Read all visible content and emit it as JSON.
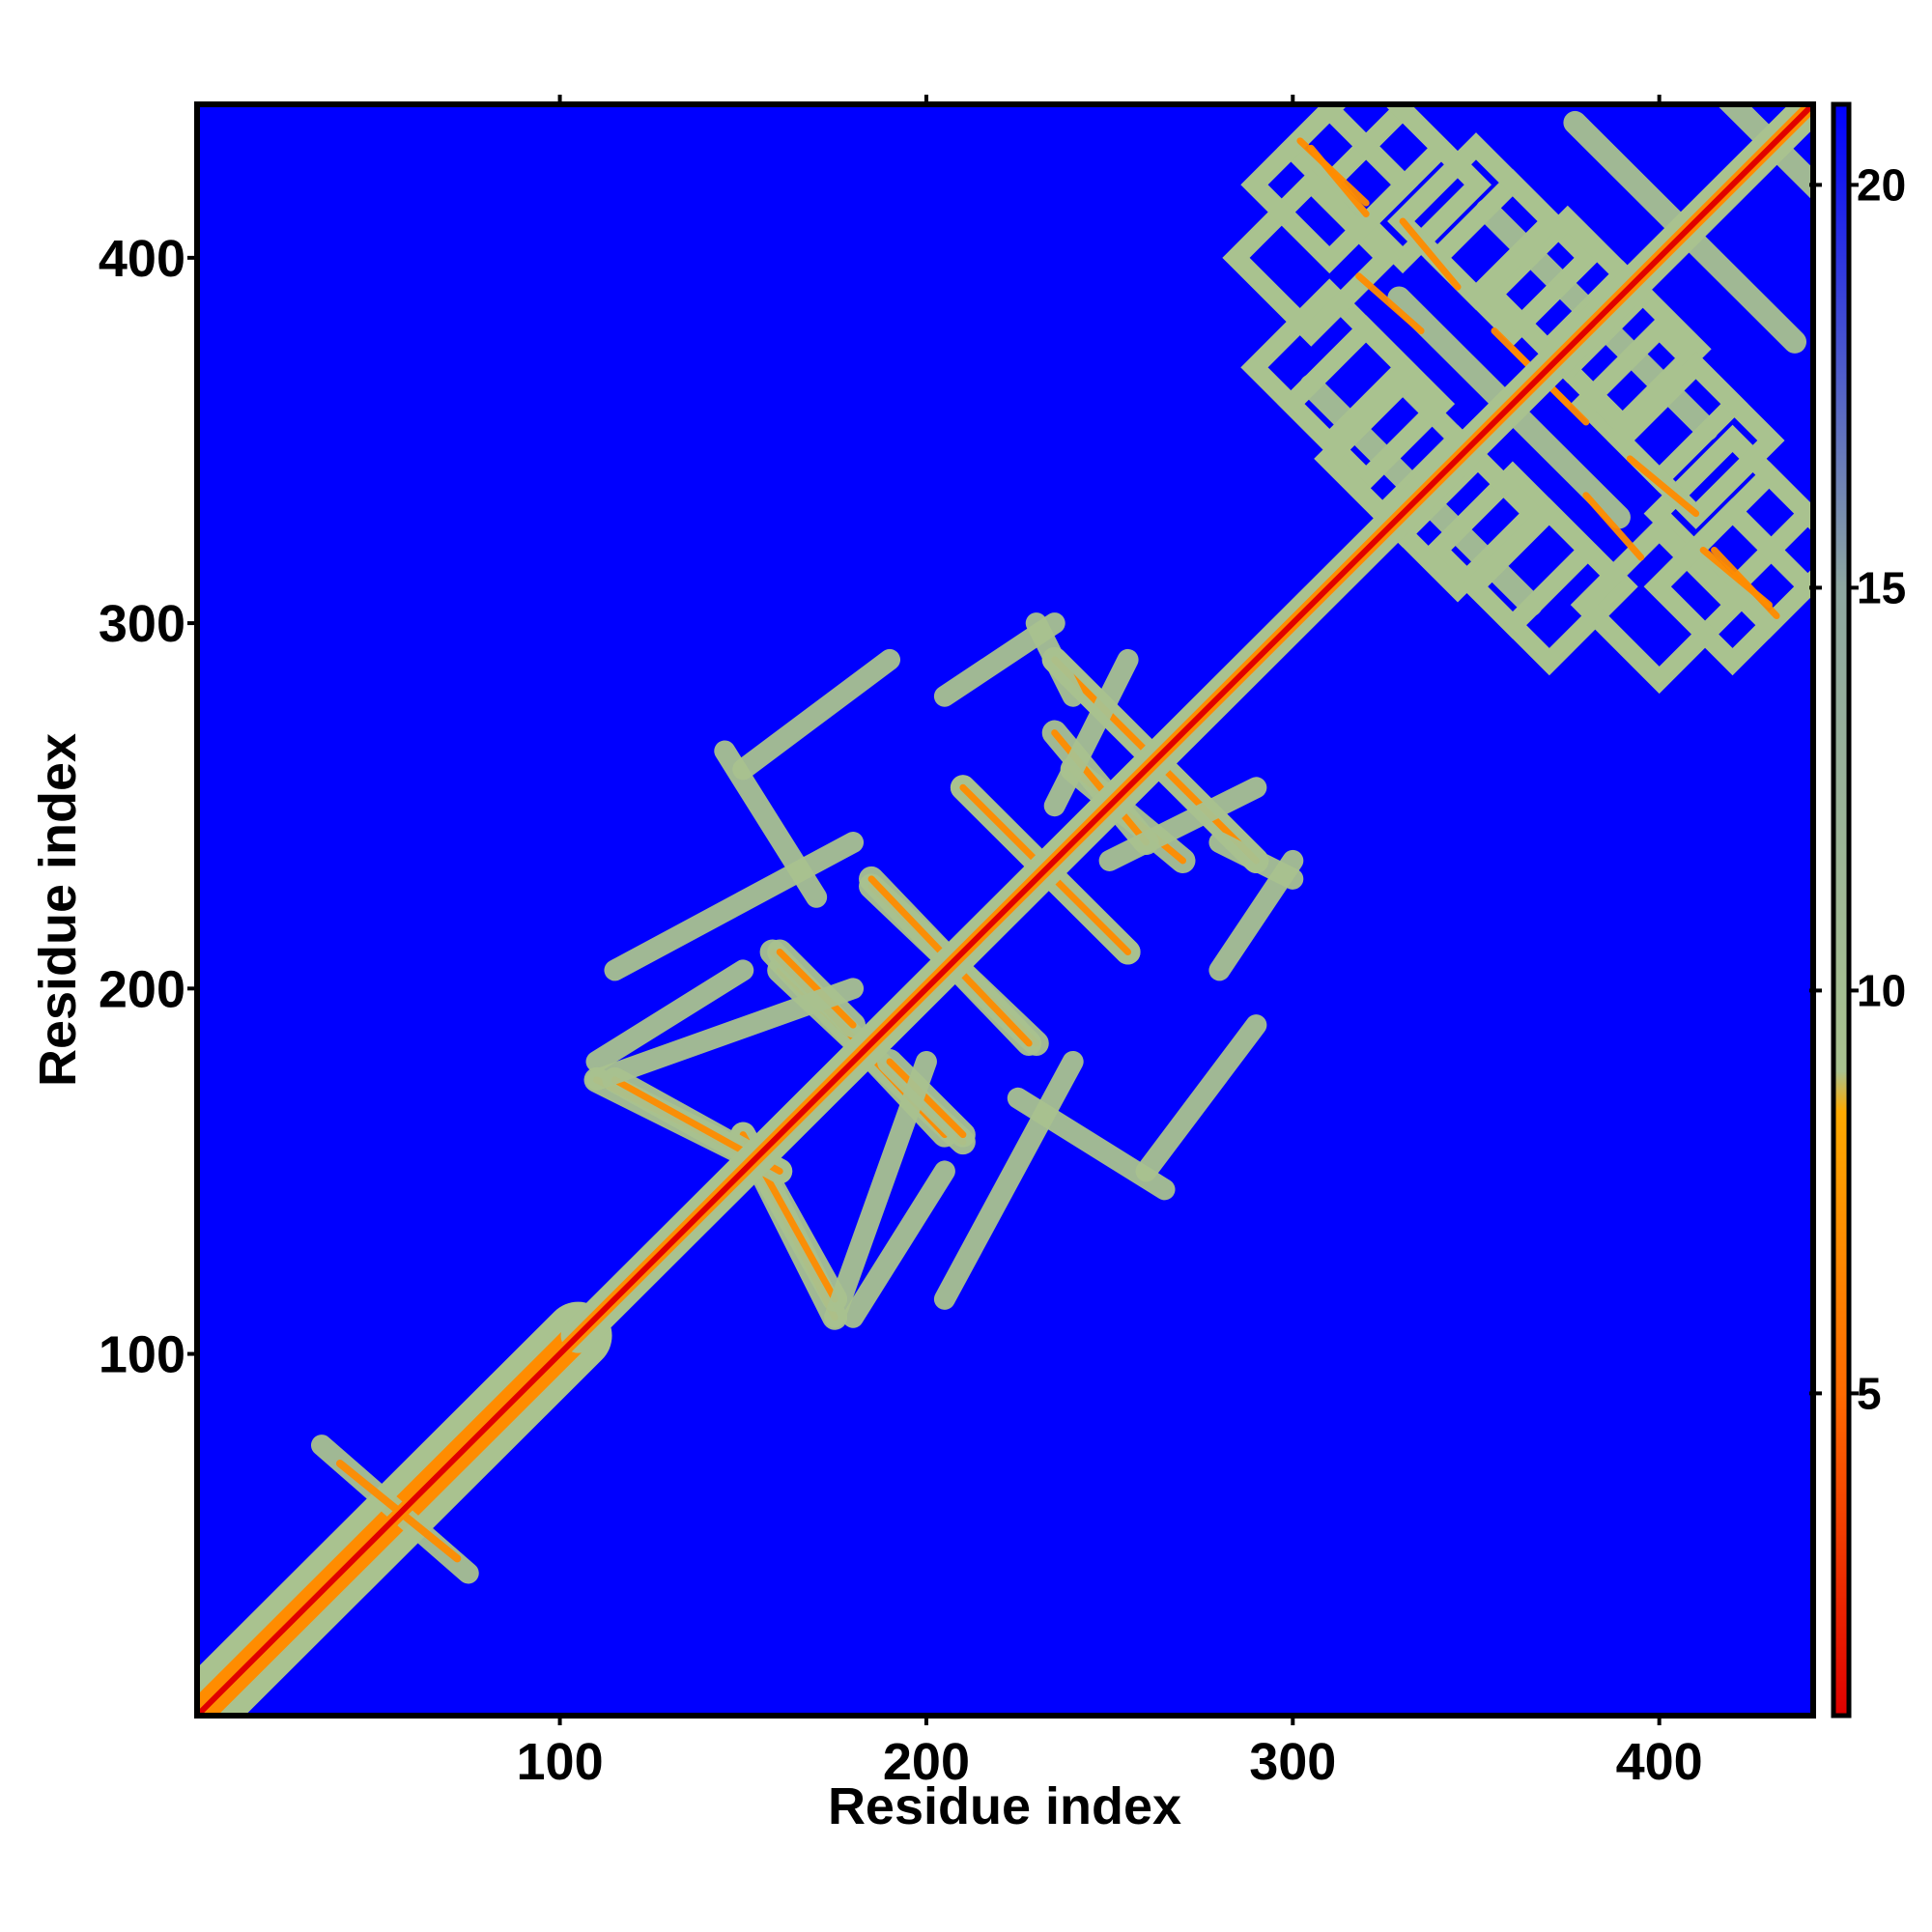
{
  "chart_data": {
    "type": "heatmap",
    "title": "",
    "xlabel": "Residue index",
    "ylabel": "Residue index",
    "xlim": [
      1,
      442
    ],
    "ylim": [
      1,
      442
    ],
    "x_ticks": [
      100,
      200,
      300,
      400
    ],
    "y_ticks": [
      100,
      200,
      300,
      400
    ],
    "colorbar": {
      "range": [
        1,
        21
      ],
      "ticks": [
        5,
        10,
        15,
        20
      ],
      "stops": [
        {
          "value": 1,
          "color": "#e00000"
        },
        {
          "value": 5,
          "color": "#ff6a00"
        },
        {
          "value": 8.5,
          "color": "#ffaa00"
        },
        {
          "value": 9,
          "color": "#a9c28f"
        },
        {
          "value": 15,
          "color": "#8ea7a0"
        },
        {
          "value": 21,
          "color": "#0000ff"
        }
      ]
    },
    "background_value": 21,
    "background_color": "#0000ff",
    "diagonal": {
      "core_color": "#e00000",
      "mid_color": "#ff8c00",
      "halo_color": "#a9c28f"
    },
    "domains": [
      {
        "name": "",
        "range": [
          1,
          105
        ],
        "pattern": "wide-diagonal"
      },
      {
        "name": "",
        "range": [
          105,
          300
        ],
        "pattern": "cross-hatch"
      },
      {
        "name": "",
        "range": [
          300,
          442
        ],
        "pattern": "lattice"
      }
    ]
  }
}
